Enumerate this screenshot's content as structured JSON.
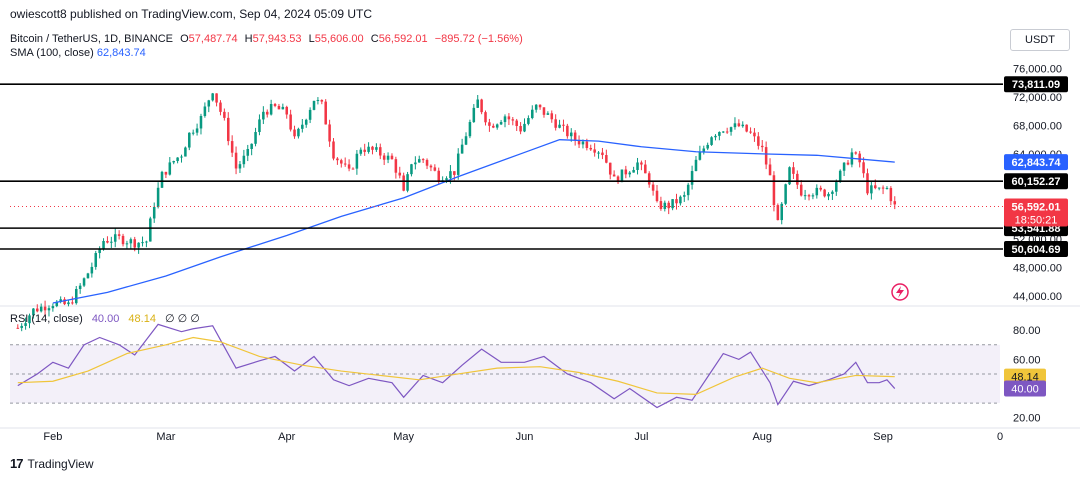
{
  "header": {
    "publisher": "owiescott8 published on TradingView.com, Sep 04, 2024 05:09 UTC"
  },
  "symbol": {
    "name": "Bitcoin / TetherUS, 1D, BINANCE",
    "open_label": "O",
    "open": "57,487.74",
    "high_label": "H",
    "high": "57,943.53",
    "low_label": "L",
    "low": "55,606.00",
    "close_label": "C",
    "close": "56,592.01",
    "change": "−895.72 (−1.56%)"
  },
  "sma": {
    "label": "SMA (100, close)",
    "value": "62,843.74"
  },
  "rsi": {
    "label": "RSI (14, close)",
    "value": "40.00",
    "ma_value": "48.14",
    "extra": "∅  ∅  ∅"
  },
  "currency_button": "USDT",
  "footer": {
    "brand": "TradingView",
    "logo": "17"
  },
  "colors": {
    "up": "#089981",
    "down": "#f23645",
    "sma": "#2962ff",
    "rsi": "#7e57c2",
    "rsi_ma": "#f0c53a",
    "rsi_band": "#7e57c2",
    "level": "#000000",
    "grid_text": "#131722"
  },
  "chart_data": [
    {
      "type": "candlestick",
      "title": "Bitcoin / TetherUS, 1D, BINANCE",
      "ylim": [
        43000,
        77500
      ],
      "x_range": [
        "2024-01-21",
        "2024-10-01"
      ],
      "x_ticks": [
        {
          "label": "Feb",
          "date": "2024-02-01"
        },
        {
          "label": "Mar",
          "date": "2024-03-01"
        },
        {
          "label": "Apr",
          "date": "2024-04-01"
        },
        {
          "label": "May",
          "date": "2024-05-01"
        },
        {
          "label": "Jun",
          "date": "2024-06-01"
        },
        {
          "label": "Jul",
          "date": "2024-07-01"
        },
        {
          "label": "Aug",
          "date": "2024-08-01"
        },
        {
          "label": "Sep",
          "date": "2024-09-01"
        },
        {
          "label": "0",
          "date": "2024-10-01"
        }
      ],
      "y_ticks": [
        "76,000.00",
        "72,000.00",
        "68,000.00",
        "64,000.00",
        "60,000.00",
        "56,000.00",
        "52,000.00",
        "48,000.00",
        "44,000.00"
      ],
      "y_tick_values": [
        76000,
        72000,
        68000,
        64000,
        60000,
        56000,
        52000,
        48000,
        44000
      ],
      "levels": [
        {
          "label": "73,811.09",
          "value": 73811.09
        },
        {
          "label": "60,152.27",
          "value": 60152.27
        },
        {
          "label": "53,541.88",
          "value": 53541.88
        },
        {
          "label": "50,604.69",
          "value": 50604.69
        }
      ],
      "last_price": {
        "label": "56,592.01",
        "timer": "18:50:21",
        "value": 56592.01
      },
      "sma_label": {
        "label": "62,843.74",
        "value": 62843.74
      },
      "price_path": [
        [
          "2024-01-23",
          39500
        ],
        [
          "2024-01-27",
          42000
        ],
        [
          "2024-02-01",
          43000
        ],
        [
          "2024-02-05",
          42700
        ],
        [
          "2024-02-08",
          45300
        ],
        [
          "2024-02-11",
          48200
        ],
        [
          "2024-02-14",
          51800
        ],
        [
          "2024-02-18",
          52100
        ],
        [
          "2024-02-22",
          51500
        ],
        [
          "2024-02-25",
          51700
        ],
        [
          "2024-02-27",
          57000
        ],
        [
          "2024-02-29",
          61000
        ],
        [
          "2024-03-03",
          63000
        ],
        [
          "2024-03-05",
          64000
        ],
        [
          "2024-03-07",
          66800
        ],
        [
          "2024-03-10",
          69000
        ],
        [
          "2024-03-13",
          73100
        ],
        [
          "2024-03-14",
          71500
        ],
        [
          "2024-03-16",
          68500
        ],
        [
          "2024-03-19",
          62000
        ],
        [
          "2024-03-22",
          64000
        ],
        [
          "2024-03-26",
          70000
        ],
        [
          "2024-03-29",
          70500
        ],
        [
          "2024-04-01",
          69700
        ],
        [
          "2024-04-03",
          65900
        ],
        [
          "2024-04-08",
          71700
        ],
        [
          "2024-04-10",
          70800
        ],
        [
          "2024-04-13",
          64000
        ],
        [
          "2024-04-17",
          61300
        ],
        [
          "2024-04-20",
          64900
        ],
        [
          "2024-04-24",
          64300
        ],
        [
          "2024-04-28",
          63100
        ],
        [
          "2024-04-30",
          60600
        ],
        [
          "2024-05-01",
          58300
        ],
        [
          "2024-05-03",
          62900
        ],
        [
          "2024-05-06",
          63200
        ],
        [
          "2024-05-10",
          60800
        ],
        [
          "2024-05-14",
          61500
        ],
        [
          "2024-05-16",
          65200
        ],
        [
          "2024-05-20",
          71400
        ],
        [
          "2024-05-23",
          67900
        ],
        [
          "2024-05-27",
          69400
        ],
        [
          "2024-05-31",
          67500
        ],
        [
          "2024-06-04",
          70600
        ],
        [
          "2024-06-07",
          69400
        ],
        [
          "2024-06-11",
          67300
        ],
        [
          "2024-06-14",
          66000
        ],
        [
          "2024-06-18",
          65200
        ],
        [
          "2024-06-21",
          64200
        ],
        [
          "2024-06-24",
          60300
        ],
        [
          "2024-06-27",
          61500
        ],
        [
          "2024-06-30",
          62700
        ],
        [
          "2024-07-03",
          60200
        ],
        [
          "2024-07-05",
          56700
        ],
        [
          "2024-07-08",
          56700
        ],
        [
          "2024-07-12",
          57900
        ],
        [
          "2024-07-15",
          62900
        ],
        [
          "2024-07-19",
          66700
        ],
        [
          "2024-07-22",
          67600
        ],
        [
          "2024-07-26",
          67900
        ],
        [
          "2024-07-29",
          66800
        ],
        [
          "2024-08-01",
          64600
        ],
        [
          "2024-08-03",
          60700
        ],
        [
          "2024-08-05",
          54000
        ],
        [
          "2024-08-08",
          61700
        ],
        [
          "2024-08-11",
          58700
        ],
        [
          "2024-08-14",
          58700
        ],
        [
          "2024-08-18",
          58500
        ],
        [
          "2024-08-21",
          61100
        ],
        [
          "2024-08-24",
          64100
        ],
        [
          "2024-08-26",
          62800
        ],
        [
          "2024-08-28",
          59000
        ],
        [
          "2024-08-31",
          58900
        ],
        [
          "2024-09-02",
          59100
        ],
        [
          "2024-09-04",
          56592
        ]
      ],
      "sma_path": [
        [
          "2024-02-01",
          43000
        ],
        [
          "2024-02-15",
          44500
        ],
        [
          "2024-03-01",
          46800
        ],
        [
          "2024-03-15",
          49500
        ],
        [
          "2024-04-01",
          52500
        ],
        [
          "2024-04-15",
          55200
        ],
        [
          "2024-05-01",
          57800
        ],
        [
          "2024-05-15",
          60800
        ],
        [
          "2024-06-01",
          64200
        ],
        [
          "2024-06-10",
          66000
        ],
        [
          "2024-06-20",
          65800
        ],
        [
          "2024-07-01",
          65000
        ],
        [
          "2024-07-15",
          64300
        ],
        [
          "2024-08-01",
          64000
        ],
        [
          "2024-08-15",
          63800
        ],
        [
          "2024-09-04",
          62843
        ]
      ]
    },
    {
      "type": "line",
      "title": "RSI (14, close)",
      "ylim": [
        15,
        87
      ],
      "y_ticks": [
        "80.00",
        "60.00",
        "20.00"
      ],
      "y_tick_values": [
        80,
        60,
        20
      ],
      "bands": [
        70,
        30
      ],
      "mid": 50,
      "labels": [
        {
          "label": "48.14",
          "value": 48.14
        },
        {
          "label": "40.00",
          "value": 40.0
        }
      ],
      "series": [
        {
          "name": "RSI",
          "points": [
            [
              "2024-01-23",
              42
            ],
            [
              "2024-01-28",
              50
            ],
            [
              "2024-02-01",
              58
            ],
            [
              "2024-02-05",
              54
            ],
            [
              "2024-02-09",
              70
            ],
            [
              "2024-02-13",
              75
            ],
            [
              "2024-02-18",
              70
            ],
            [
              "2024-02-22",
              63
            ],
            [
              "2024-02-28",
              84
            ],
            [
              "2024-03-05",
              79
            ],
            [
              "2024-03-08",
              81
            ],
            [
              "2024-03-13",
              83
            ],
            [
              "2024-03-19",
              54
            ],
            [
              "2024-03-25",
              59
            ],
            [
              "2024-03-29",
              62
            ],
            [
              "2024-04-03",
              52
            ],
            [
              "2024-04-08",
              62
            ],
            [
              "2024-04-13",
              46
            ],
            [
              "2024-04-17",
              42
            ],
            [
              "2024-04-22",
              47
            ],
            [
              "2024-04-28",
              44
            ],
            [
              "2024-05-01",
              34
            ],
            [
              "2024-05-06",
              49
            ],
            [
              "2024-05-11",
              44
            ],
            [
              "2024-05-16",
              56
            ],
            [
              "2024-05-21",
              67
            ],
            [
              "2024-05-26",
              58
            ],
            [
              "2024-06-01",
              58
            ],
            [
              "2024-06-06",
              62
            ],
            [
              "2024-06-12",
              50
            ],
            [
              "2024-06-18",
              44
            ],
            [
              "2024-06-24",
              33
            ],
            [
              "2024-06-28",
              40
            ],
            [
              "2024-07-05",
              27
            ],
            [
              "2024-07-10",
              34
            ],
            [
              "2024-07-14",
              32
            ],
            [
              "2024-07-18",
              48
            ],
            [
              "2024-07-22",
              64
            ],
            [
              "2024-07-26",
              60
            ],
            [
              "2024-07-29",
              65
            ],
            [
              "2024-08-03",
              44
            ],
            [
              "2024-08-05",
              29
            ],
            [
              "2024-08-09",
              45
            ],
            [
              "2024-08-13",
              42
            ],
            [
              "2024-08-18",
              46
            ],
            [
              "2024-08-22",
              50
            ],
            [
              "2024-08-25",
              58
            ],
            [
              "2024-08-28",
              44
            ],
            [
              "2024-08-31",
              44
            ],
            [
              "2024-09-02",
              46
            ],
            [
              "2024-09-04",
              40
            ]
          ]
        },
        {
          "name": "RSI-based MA",
          "points": [
            [
              "2024-01-23",
              44
            ],
            [
              "2024-02-01",
              45
            ],
            [
              "2024-02-10",
              52
            ],
            [
              "2024-02-20",
              64
            ],
            [
              "2024-03-01",
              70
            ],
            [
              "2024-03-08",
              75
            ],
            [
              "2024-03-15",
              72
            ],
            [
              "2024-03-25",
              62
            ],
            [
              "2024-04-05",
              56
            ],
            [
              "2024-04-15",
              52
            ],
            [
              "2024-04-25",
              49
            ],
            [
              "2024-05-05",
              46
            ],
            [
              "2024-05-15",
              50
            ],
            [
              "2024-05-25",
              54
            ],
            [
              "2024-06-05",
              55
            ],
            [
              "2024-06-15",
              51
            ],
            [
              "2024-06-25",
              45
            ],
            [
              "2024-07-05",
              37
            ],
            [
              "2024-07-15",
              36
            ],
            [
              "2024-07-25",
              48
            ],
            [
              "2024-08-01",
              54
            ],
            [
              "2024-08-08",
              47
            ],
            [
              "2024-08-15",
              44
            ],
            [
              "2024-08-25",
              49
            ],
            [
              "2024-09-04",
              48.14
            ]
          ]
        }
      ]
    }
  ]
}
